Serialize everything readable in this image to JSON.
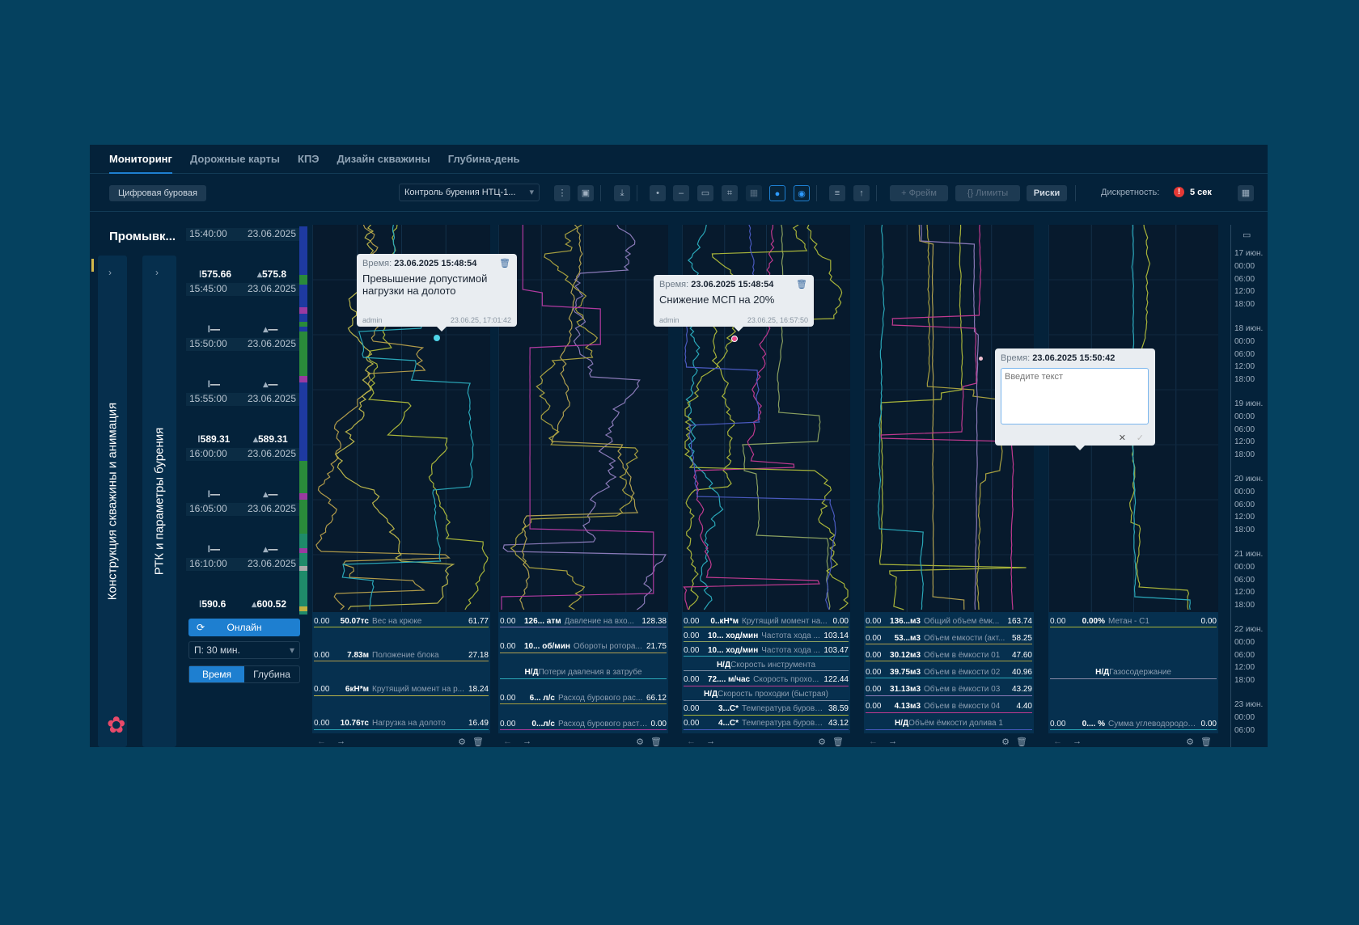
{
  "tabs": [
    "Мониторинг",
    "Дорожные карты",
    "КПЭ",
    "Дизайн скважины",
    "Глубина-день"
  ],
  "toolbar": {
    "rig_button": "Цифровая буровая",
    "template_select": "Контроль бурения НТЦ-1...",
    "frame_button": "+  Фрейм",
    "limits_button": "{}  Лимиты",
    "risks_button": "Риски",
    "discreteness_label": "Дискретность:",
    "discreteness_value": "5 сек",
    "warning_icon": "!"
  },
  "left": {
    "title": "Промывк...",
    "panel1": "Конструкция скважины и анимация",
    "panel2": "РТК и параметры бурения"
  },
  "timeline": {
    "times": [
      [
        "15:40:00",
        "23.06.2025"
      ],
      [
        "15:45:00",
        "23.06.2025"
      ],
      [
        "15:50:00",
        "23.06.2025"
      ],
      [
        "15:55:00",
        "23.06.2025"
      ],
      [
        "16:00:00",
        "23.06.2025"
      ],
      [
        "16:05:00",
        "23.06.2025"
      ],
      [
        "16:10:00",
        "23.06.2025"
      ]
    ],
    "depths": [
      [
        "575.66",
        "575.8"
      ],
      [
        "—",
        "—"
      ],
      [
        "—",
        "—"
      ],
      [
        "589.31",
        "589.31"
      ],
      [
        "—",
        "—"
      ],
      [
        "—",
        "—"
      ],
      [
        "590.6",
        "600.52"
      ]
    ],
    "online_button": "Онлайн",
    "period_select": "П: 30 мин.",
    "mode_time": "Время",
    "mode_depth": "Глубина"
  },
  "tracks": [
    {
      "params": [
        {
          "min": "0.00",
          "cur": "50.07тс",
          "name": "Вес на крюке",
          "max": "61.77",
          "color": "#a8b43a"
        },
        {
          "min": "0.00",
          "cur": "7.83м",
          "name": "Положение блока",
          "max": "27.18",
          "color": "#b09a4a"
        },
        {
          "min": "0.00",
          "cur": "6кН*м",
          "name": "Крутящий момент на р...",
          "max": "18.24",
          "color": "#b9b44a"
        },
        {
          "min": "0.00",
          "cur": "10.76тс",
          "name": "Нагрузка на долото",
          "max": "16.49",
          "color": "#2aa7b8"
        }
      ]
    },
    {
      "params": [
        {
          "min": "0.00",
          "cur": "126... атм",
          "name": "Давление на вхо...",
          "max": "128.38",
          "color": "#8a7ab8"
        },
        {
          "min": "0.00",
          "cur": "10... об/мин",
          "name": "Обороты ротора...",
          "max": "21.75",
          "color": "#b0a050"
        },
        {
          "nd": "Н/Д",
          "name": "Потери давления в затрубе",
          "color": "#2aa7b8"
        },
        {
          "min": "0.00",
          "cur": "6... л/с",
          "name": "Расход бурового рас...",
          "max": "66.12",
          "color": "#a8a040"
        },
        {
          "min": "0.00",
          "cur": "0...л/с",
          "name": "Расход бурового раств...",
          "max": "0.00",
          "color": "#b03aa0"
        }
      ]
    },
    {
      "params": [
        {
          "min": "0.00",
          "cur": "0..кН*м",
          "name": "Крутящий момент на...",
          "max": "0.00",
          "color": "#a8b43a"
        },
        {
          "min": "0.00",
          "cur": "10... ход/мин",
          "name": "Частота хода ...",
          "max": "103.14",
          "color": "#8aa060"
        },
        {
          "min": "0.00",
          "cur": "10... ход/мин",
          "name": "Частота хода ...",
          "max": "103.47",
          "color": "#2aa7b8"
        },
        {
          "nd": "Н/Д",
          "name": "Скорость инструмента",
          "color": "#7a8aa0"
        },
        {
          "min": "0.00",
          "cur": "72.... м/час",
          "name": "Скорость прохо...",
          "max": "122.44",
          "color": "#c03a90"
        },
        {
          "nd": "Н/Д",
          "name": "Скорость проходки (быстрая)",
          "color": "#7a8aa0"
        },
        {
          "min": "0.00",
          "cur": "3...С*",
          "name": "Температура буровог...",
          "max": "38.59",
          "color": "#a8b43a"
        },
        {
          "min": "0.00",
          "cur": "4...С*",
          "name": "Температура бурового...",
          "max": "43.12",
          "color": "#4a5ac0"
        }
      ]
    },
    {
      "params": [
        {
          "min": "0.00",
          "cur": "136...м3",
          "name": "Общий объем ёмк...",
          "max": "163.74",
          "color": "#a8b43a"
        },
        {
          "min": "0.00",
          "cur": "53...м3",
          "name": "Объем емкости (акт...",
          "max": "58.25",
          "color": "#b0a050"
        },
        {
          "min": "0.00",
          "cur": "30.12м3",
          "name": "Объем в ёмкости 01",
          "max": "47.60",
          "color": "#a8a040"
        },
        {
          "min": "0.00",
          "cur": "39.75м3",
          "name": "Объем в ёмкости 02",
          "max": "40.96",
          "color": "#2aa7b8"
        },
        {
          "min": "0.00",
          "cur": "31.13м3",
          "name": "Объем в ёмкости 03",
          "max": "43.29",
          "color": "#8a7ab8"
        },
        {
          "min": "0.00",
          "cur": "4.13м3",
          "name": "Объем в ёмкости 04",
          "max": "4.40",
          "color": "#c03a90"
        },
        {
          "nd": "Н/Д",
          "name": "Объём ёмкости долива 1",
          "color": "#4a5ac0"
        }
      ]
    },
    {
      "params": [
        {
          "min": "0.00",
          "cur": "0.00%",
          "name": "Метан - С1",
          "max": "0.00",
          "color": "#a8b43a"
        },
        {
          "nd": "Н/Д",
          "name": "Газосодержание",
          "color": "#8a8aa8"
        },
        {
          "min": "0.00",
          "cur": "0.... %",
          "name": "Сумма углеводородов С...",
          "max": "0.00",
          "color": "#2aa7b8"
        }
      ]
    }
  ],
  "tooltips": [
    {
      "label": "Время:",
      "time": "23.06.2025 15:48:54",
      "message": "Превышение допустимой нагрузки на долото",
      "author": "admin",
      "created": "23.06.25, 17:01:42"
    },
    {
      "label": "Время:",
      "time": "23.06.2025 15:48:54",
      "message": "Снижение МСП на 20%",
      "author": "admin",
      "created": "23.06.25, 16:57:50"
    }
  ],
  "comment": {
    "label": "Время:",
    "time": "23.06.2025 15:50:42",
    "placeholder": "Введите текст"
  },
  "date_axis": [
    "17 июн.",
    "00:00",
    "06:00",
    "12:00",
    "18:00",
    "18 июн.",
    "00:00",
    "06:00",
    "12:00",
    "18:00",
    "19 июн.",
    "00:00",
    "06:00",
    "12:00",
    "18:00",
    "20 июн.",
    "00:00",
    "06:00",
    "12:00",
    "18:00",
    "21 июн.",
    "00:00",
    "06:00",
    "12:00",
    "18:00",
    "22 июн.",
    "00:00",
    "06:00",
    "12:00",
    "18:00",
    "23 июн.",
    "00:00",
    "06:00"
  ],
  "colors": {
    "accent": "#1e7fd0",
    "background": "#05415f",
    "window": "#04223a",
    "warning": "#e53935"
  }
}
